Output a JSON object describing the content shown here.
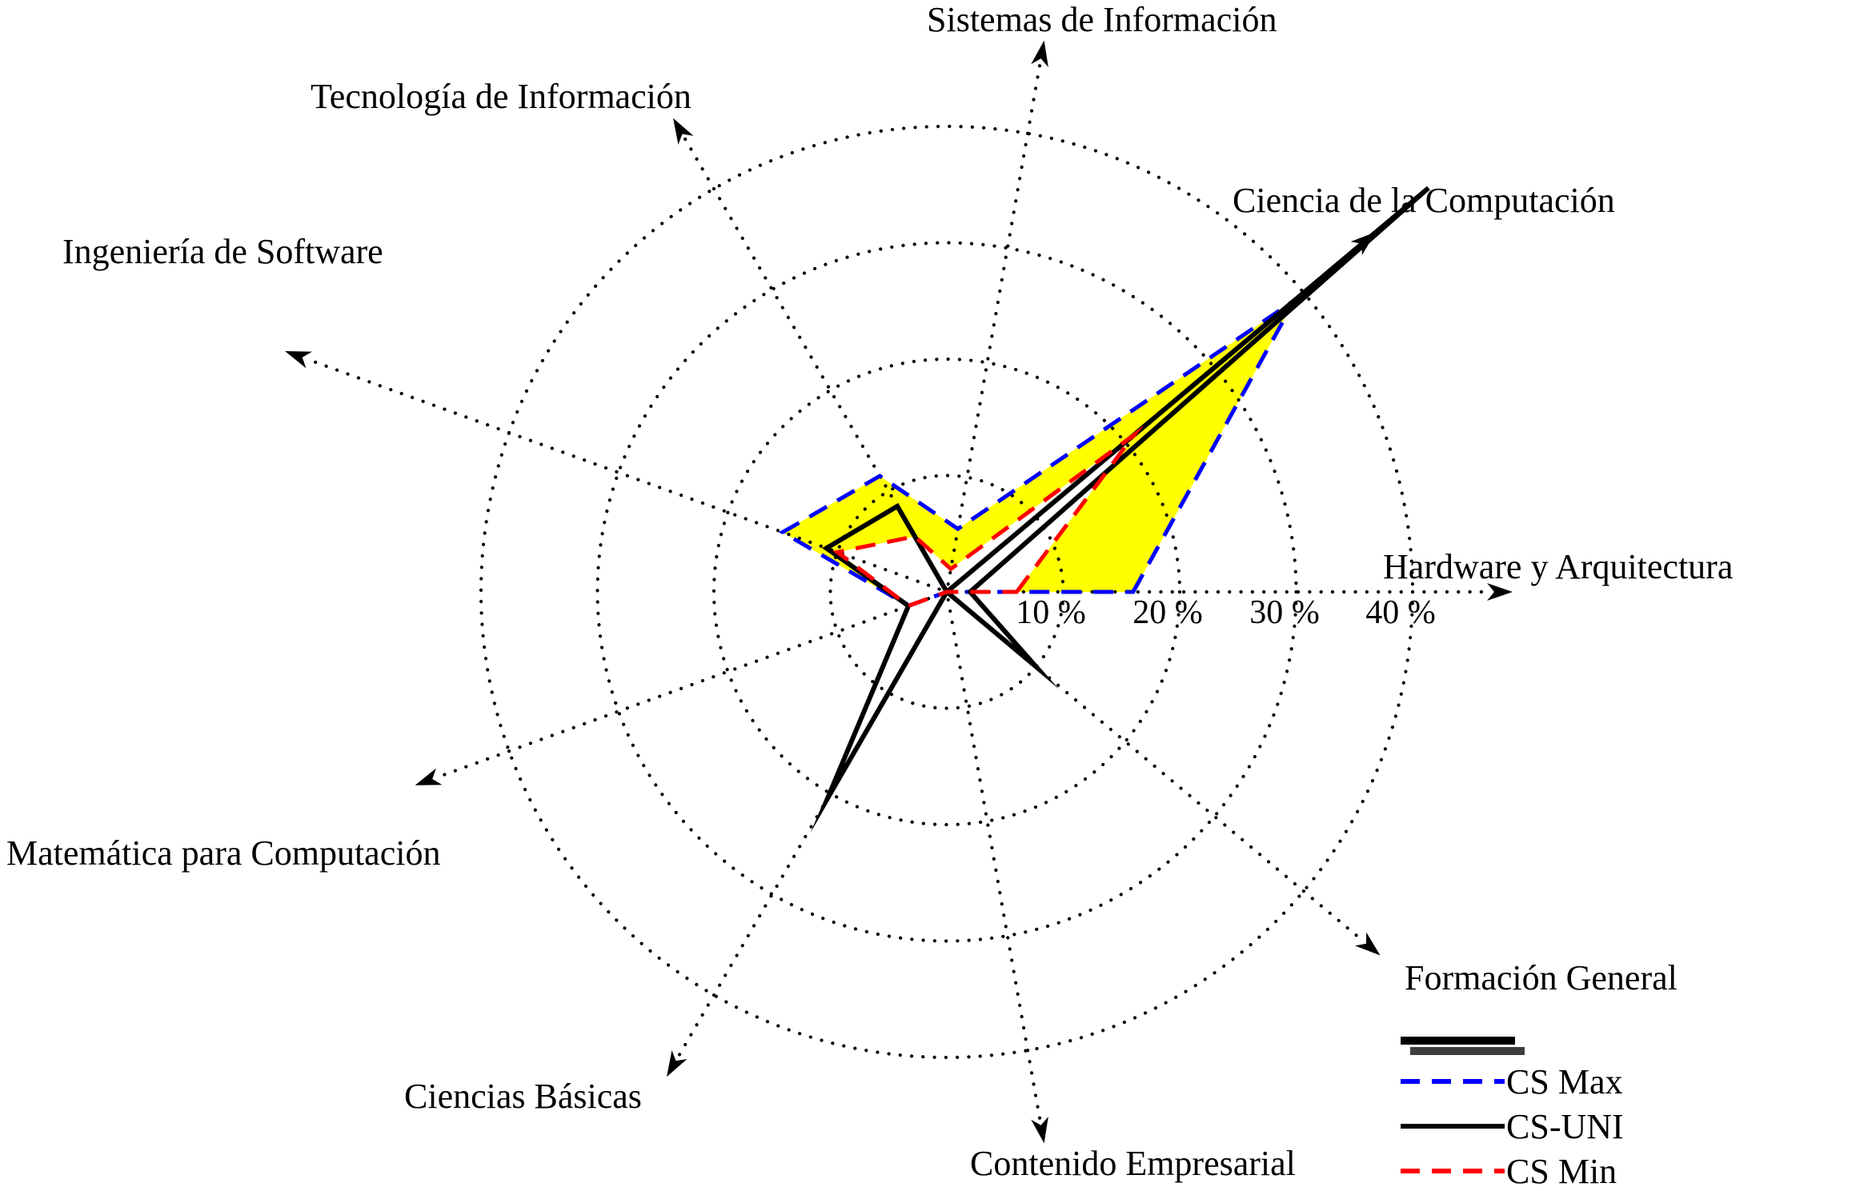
{
  "chart_data": {
    "type": "radar",
    "unit": "percent",
    "rlim": [
      0,
      40
    ],
    "grid": "dotted-circles-and-spokes",
    "legend_position": "bottom-right",
    "radial_ticks": [
      "10 %",
      "20 %",
      "30 %",
      "40 %"
    ],
    "tick_values": [
      10,
      20,
      30,
      40
    ],
    "axes": [
      {
        "label": "Hardware y Arquitectura",
        "angle_deg": 0
      },
      {
        "label": "Ciencia de la Computación",
        "angle_deg": 40
      },
      {
        "label": "Sistemas de Información",
        "angle_deg": 80
      },
      {
        "label": "Tecnología de Información",
        "angle_deg": 120
      },
      {
        "label": "Ingeniería de Software",
        "angle_deg": 160
      },
      {
        "label": "Matemática para Computación",
        "angle_deg": 200
      },
      {
        "label": "Ciencias Básicas",
        "angle_deg": 240
      },
      {
        "label": "Contenido Empresarial",
        "angle_deg": 280
      },
      {
        "label": "Formación General",
        "angle_deg": 320
      }
    ],
    "series": [
      {
        "name": "CS Max",
        "color": "#0000ff",
        "style": "dashed",
        "values": [
          16,
          39,
          5.5,
          11.5,
          15,
          3.5,
          0,
          0,
          0
        ]
      },
      {
        "name": "CS-UNI",
        "color": "#000000",
        "style": "solid",
        "values": [
          2,
          54,
          0,
          8.5,
          11,
          3.5,
          20.5,
          0,
          10
        ]
      },
      {
        "name": "CS Min",
        "color": "#ff0000",
        "style": "dashed",
        "values": [
          6,
          21,
          2,
          5.5,
          10,
          3.5,
          0,
          0,
          0
        ]
      }
    ],
    "band": {
      "between": [
        "CS Min",
        "CS Max"
      ],
      "color": "#ffff00"
    },
    "legend_bars": [
      {
        "color": "#000000"
      },
      {
        "color": "#3d3d3d"
      }
    ]
  }
}
